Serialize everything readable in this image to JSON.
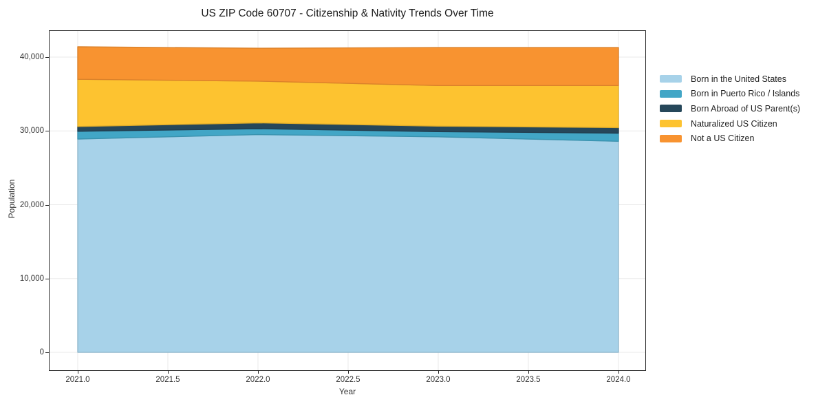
{
  "chart_data": {
    "type": "area",
    "stacked": true,
    "title": "US ZIP Code 60707 - Citizenship & Nativity Trends Over Time",
    "xlabel": "Year",
    "ylabel": "Population",
    "x": [
      2021,
      2022,
      2023,
      2024
    ],
    "series": [
      {
        "name": "Born in the United States",
        "color": "#a7d2e9",
        "values": [
          28900,
          29500,
          29200,
          28600
        ]
      },
      {
        "name": "Born in Puerto Rico / Islands",
        "color": "#42a6c6",
        "values": [
          1050,
          800,
          700,
          1100
        ]
      },
      {
        "name": "Born Abroad of US Parent(s)",
        "color": "#26475a",
        "values": [
          650,
          800,
          750,
          750
        ]
      },
      {
        "name": "Naturalized US Citizen",
        "color": "#fdc330",
        "values": [
          6400,
          5650,
          5500,
          5700
        ]
      },
      {
        "name": "Not a US Citizen",
        "color": "#f89330",
        "values": [
          4400,
          4450,
          5150,
          5150
        ]
      }
    ],
    "x_ticks": {
      "values": [
        2021,
        2021.5,
        2022,
        2022.5,
        2023,
        2023.5,
        2024
      ],
      "labels": [
        "2021.0",
        "2021.5",
        "2022.0",
        "2022.5",
        "2023.0",
        "2023.5",
        "2024.0"
      ]
    },
    "y_ticks": {
      "values": [
        0,
        10000,
        20000,
        30000,
        40000
      ],
      "labels": [
        "0",
        "10,000",
        "20,000",
        "30,000",
        "40,000"
      ]
    },
    "xlim": [
      2020.84,
      2024.15
    ],
    "ylim": [
      0,
      43550
    ],
    "grid": true,
    "legend_position": "right",
    "grid_color": "#e9e9e9",
    "axis_color": "#2b2b2b"
  }
}
